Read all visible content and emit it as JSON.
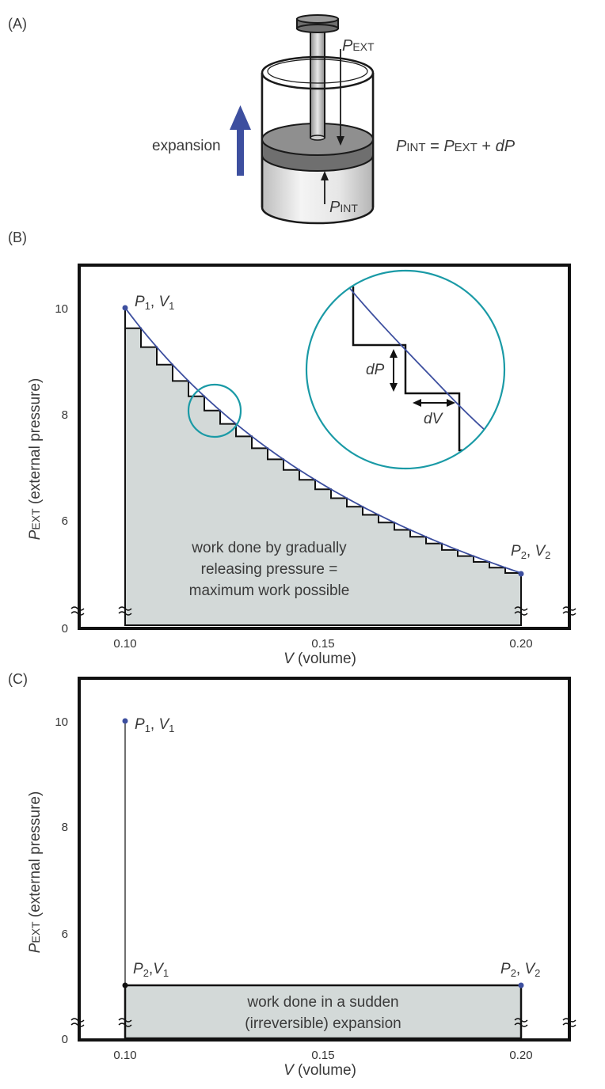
{
  "panel_a": {
    "label": "(A)",
    "expansion": "expansion",
    "pext_main": "P",
    "pext_sub": "EXT",
    "pint_main": "P",
    "pint_sub": "INT",
    "equation": {
      "lhs_main": "P",
      "lhs_sub": "INT",
      "eq": " = ",
      "rhs_main": "P",
      "rhs_sub": "EXT",
      "plus": " + ",
      "dp": "dP"
    },
    "colors": {
      "arrow": "#3d4f9f",
      "piston_dark": "#7a7a7a",
      "cylinder_light": "#e6e6e6"
    }
  },
  "panel_b": {
    "label": "(B)",
    "point1": {
      "p": "P",
      "s1": "1",
      "comma": ", ",
      "v": "V",
      "s2": "1"
    },
    "point2": {
      "p": "P",
      "s1": "2",
      "comma": ", ",
      "v": "V",
      "s2": "2"
    },
    "fill_text": [
      "work done by gradually",
      "releasing pressure =",
      "maximum work possible"
    ],
    "inset": {
      "dp": "dP",
      "dv": "dV"
    },
    "colors": {
      "curve": "#3d4f9f",
      "circle": "#1a9aa6",
      "fill": "#d3d9d8",
      "point": "#3d4f9f"
    }
  },
  "panel_c": {
    "label": "(C)",
    "point1": {
      "p": "P",
      "s1": "1",
      "comma": ", ",
      "v": "V",
      "s2": "1"
    },
    "point_mid": {
      "p": "P",
      "s1": "2",
      "comma": ",",
      "v": "V",
      "s2": "1"
    },
    "point2": {
      "p": "P",
      "s1": "2",
      "comma": ", ",
      "v": "V",
      "s2": "2"
    },
    "fill_text": [
      "work done in a sudden",
      "(irreversible) expansion"
    ]
  },
  "axes": {
    "ylabel_main": "P",
    "ylabel_sub": "EXT",
    "ylabel_rest": " (external pressure)",
    "xlabel_main": "V",
    "xlabel_rest": " (volume)",
    "yticks": [
      "0",
      "6",
      "8",
      "10"
    ],
    "xticks": [
      "0.10",
      "0.15",
      "0.20"
    ]
  },
  "chart_data": [
    {
      "type": "line",
      "title": "",
      "xlabel": "V (volume)",
      "ylabel": "PEXT (external pressure)",
      "y_axis_break": "between 0 and 6",
      "xlim": [
        0.088,
        0.213
      ],
      "series": [
        {
          "x": [
            0.1,
            0.11,
            0.12,
            0.13,
            0.14,
            0.15,
            0.16,
            0.17,
            0.18,
            0.19,
            0.2
          ],
          "y": [
            10.0,
            9.1,
            8.33,
            7.7,
            7.14,
            6.67,
            6.25,
            5.88,
            5.56,
            5.26,
            5.0
          ]
        }
      ],
      "steps": {
        "count": 25,
        "dV": 0.004
      }
    },
    {
      "type": "line",
      "title": "",
      "xlabel": "V (volume)",
      "ylabel": "PEXT (external pressure)",
      "y_axis_break": "between 0 and 6",
      "xlim": [
        0.088,
        0.213
      ],
      "series": [
        {
          "x": [
            0.1,
            0.1,
            0.2
          ],
          "y": [
            10,
            5,
            5
          ]
        }
      ]
    }
  ]
}
